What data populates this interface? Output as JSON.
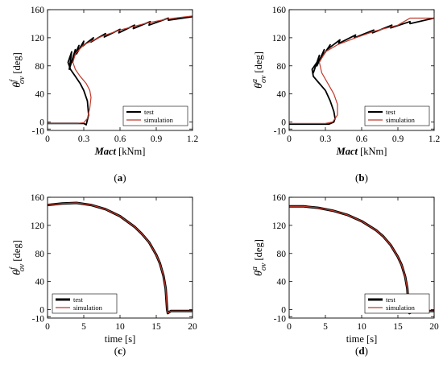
{
  "chart_data": [
    {
      "panel": "(a)",
      "type": "line",
      "xlabel": "Mact [kNm]",
      "xlabel_italic": "Mact",
      "xlabel_unit": " [kNm]",
      "ylabel_sym": "θ",
      "ylabel_sup": "f",
      "ylabel_sub": "ov",
      "ylabel_unit": "[deg]",
      "xlim": [
        0,
        1.2
      ],
      "ylim": [
        -12,
        160
      ],
      "xticks": [
        0,
        0.3,
        0.6,
        0.9,
        1.2
      ],
      "xtick_labels": [
        "0",
        "0.3",
        "0.6",
        "0.9",
        "1.2"
      ],
      "yticks": [
        -10,
        0,
        40,
        80,
        120,
        160
      ],
      "ytick_labels": [
        "-10",
        "0",
        "40",
        "80",
        "120",
        "160"
      ],
      "legend_position": "lower-right",
      "grid": false,
      "series": [
        {
          "name": "test",
          "color": "#000000",
          "x": [
            0,
            0.3,
            0.32,
            0.34,
            0.33,
            0.3,
            0.27,
            0.23,
            0.19,
            0.17,
            0.2,
            0.18,
            0.23,
            0.2,
            0.26,
            0.24,
            0.3,
            0.29,
            0.38,
            0.36,
            0.48,
            0.47,
            0.6,
            0.59,
            0.72,
            0.71,
            0.85,
            0.84,
            1.0,
            1.0,
            1.2
          ],
          "y": [
            -2,
            -2,
            -4,
            10,
            30,
            45,
            55,
            65,
            75,
            85,
            100,
            75,
            103,
            85,
            109,
            97,
            115,
            108,
            120,
            114,
            126,
            121,
            132,
            127,
            138,
            133,
            143,
            138,
            148,
            145,
            150
          ]
        },
        {
          "name": "simulation",
          "color": "#c0392b",
          "x": [
            0,
            0.25,
            0.3,
            0.33,
            0.35,
            0.36,
            0.35,
            0.32,
            0.27,
            0.23,
            0.21,
            0.23,
            0.3,
            0.45,
            0.6,
            0.8,
            1.0,
            1.2
          ],
          "y": [
            -2,
            -2,
            -1,
            5,
            20,
            35,
            45,
            55,
            65,
            75,
            85,
            97,
            110,
            122,
            131,
            140,
            147,
            151
          ]
        }
      ]
    },
    {
      "panel": "(b)",
      "type": "line",
      "xlabel": "Mact [kNm]",
      "xlabel_italic": "Mact",
      "xlabel_unit": " [kNm]",
      "ylabel_sym": "θ",
      "ylabel_sup": "a",
      "ylabel_sub": "ov",
      "ylabel_unit": "[deg]",
      "xlim": [
        0,
        1.2
      ],
      "ylim": [
        -12,
        160
      ],
      "xticks": [
        0,
        0.3,
        0.6,
        0.9,
        1.2
      ],
      "xtick_labels": [
        "0",
        "0.3",
        "0.6",
        "0.9",
        "1.2"
      ],
      "yticks": [
        -10,
        0,
        40,
        80,
        120,
        160
      ],
      "ytick_labels": [
        "-10",
        "0",
        "40",
        "80",
        "120",
        "160"
      ],
      "legend_position": "lower-right",
      "grid": false,
      "series": [
        {
          "name": "test",
          "color": "#000000",
          "x": [
            0,
            0.33,
            0.37,
            0.38,
            0.37,
            0.34,
            0.3,
            0.25,
            0.2,
            0.19,
            0.23,
            0.2,
            0.25,
            0.23,
            0.29,
            0.27,
            0.34,
            0.32,
            0.42,
            0.41,
            0.55,
            0.54,
            0.7,
            0.69,
            0.85,
            0.84,
            1.0,
            1.0,
            1.2
          ],
          "y": [
            -3,
            -3,
            0,
            5,
            15,
            30,
            45,
            55,
            65,
            75,
            85,
            70,
            95,
            80,
            103,
            92,
            110,
            104,
            117,
            112,
            124,
            120,
            131,
            127,
            138,
            134,
            143,
            140,
            148
          ]
        },
        {
          "name": "simulation",
          "color": "#c0392b",
          "x": [
            0,
            0.3,
            0.36,
            0.4,
            0.4,
            0.37,
            0.32,
            0.27,
            0.25,
            0.3,
            0.4,
            0.55,
            0.7,
            0.9,
            1.0,
            1.2
          ],
          "y": [
            -2,
            -2,
            0,
            10,
            25,
            40,
            55,
            70,
            85,
            100,
            110,
            120,
            129,
            138,
            148,
            148
          ]
        }
      ]
    },
    {
      "panel": "(c)",
      "type": "line",
      "xlabel": "time [s]",
      "xlabel_italic": "",
      "xlabel_unit": "time [s]",
      "ylabel_sym": "θ",
      "ylabel_sup": "f",
      "ylabel_sub": "ov",
      "ylabel_unit": "[deg]",
      "xlim": [
        0,
        20
      ],
      "ylim": [
        -12,
        160
      ],
      "xticks": [
        0,
        5,
        10,
        15,
        20
      ],
      "xtick_labels": [
        "0",
        "5",
        "10",
        "15",
        "20"
      ],
      "yticks": [
        -10,
        0,
        40,
        80,
        120,
        160
      ],
      "ytick_labels": [
        "-10",
        "0",
        "40",
        "80",
        "120",
        "160"
      ],
      "legend_position": "lower-left",
      "grid": false,
      "series": [
        {
          "name": "test",
          "color": "#000000",
          "x": [
            0,
            2,
            4,
            6,
            8,
            10,
            12,
            13,
            14,
            15,
            15.5,
            16,
            16.3,
            16.4,
            16.5,
            16.6,
            17,
            20
          ],
          "y": [
            149,
            151,
            152,
            149,
            143,
            133,
            118,
            108,
            96,
            78,
            66,
            48,
            30,
            15,
            0,
            -5,
            -2,
            -2
          ]
        },
        {
          "name": "simulation",
          "color": "#c0392b",
          "x": [
            0,
            2,
            4,
            6,
            8,
            10,
            12,
            13,
            14,
            15,
            15.5,
            16,
            16.3,
            16.4,
            16.5,
            16.6,
            17,
            20
          ],
          "y": [
            149,
            151,
            152,
            149,
            143,
            133,
            118,
            108,
            96,
            78,
            66,
            48,
            30,
            15,
            0,
            -5,
            -2,
            -2
          ]
        }
      ]
    },
    {
      "panel": "(d)",
      "type": "line",
      "xlabel": "time [s]",
      "xlabel_italic": "",
      "xlabel_unit": "time [s]",
      "ylabel_sym": "θ",
      "ylabel_sup": "a",
      "ylabel_sub": "ov",
      "ylabel_unit": "[deg]",
      "xlim": [
        0,
        20
      ],
      "ylim": [
        -12,
        160
      ],
      "xticks": [
        0,
        5,
        10,
        15,
        20
      ],
      "xtick_labels": [
        "0",
        "5",
        "10",
        "15",
        "20"
      ],
      "yticks": [
        -10,
        0,
        40,
        80,
        120,
        160
      ],
      "ytick_labels": [
        "-10",
        "0",
        "40",
        "80",
        "120",
        "160"
      ],
      "legend_position": "lower-right",
      "grid": false,
      "series": [
        {
          "name": "test",
          "color": "#000000",
          "x": [
            0,
            2,
            4,
            6,
            8,
            10,
            12,
            13,
            14,
            15,
            15.5,
            16,
            16.3,
            16.4,
            16.5,
            16.6,
            17,
            20
          ],
          "y": [
            147,
            147,
            145,
            141,
            135,
            126,
            113,
            104,
            92,
            75,
            64,
            47,
            30,
            15,
            0,
            -5,
            -2,
            -2
          ]
        },
        {
          "name": "simulation",
          "color": "#c0392b",
          "x": [
            0,
            2,
            4,
            6,
            8,
            10,
            12,
            13,
            14,
            15,
            15.5,
            16,
            16.3,
            16.4,
            16.5,
            16.6,
            17,
            20
          ],
          "y": [
            147,
            147,
            145,
            141,
            135,
            126,
            113,
            104,
            92,
            75,
            64,
            47,
            30,
            15,
            0,
            -5,
            -2,
            -2
          ]
        }
      ]
    }
  ]
}
